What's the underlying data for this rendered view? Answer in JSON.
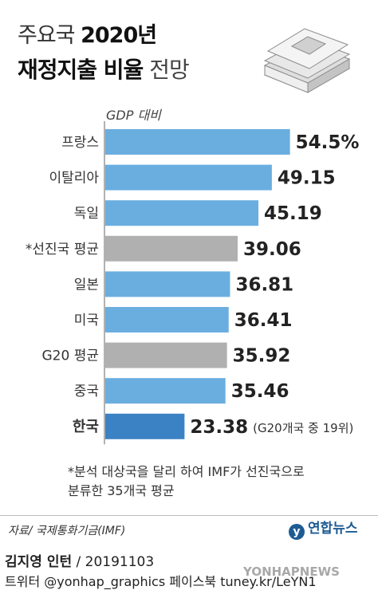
{
  "header": {
    "title_line1_a": "주요국 ",
    "title_line1_b": "2020년",
    "title_line2_a": "재정지출 비율",
    "title_line2_b": " 전망"
  },
  "chart_data": {
    "type": "bar",
    "orientation": "horizontal",
    "title": "주요국 2020년 재정지출 비율 전망",
    "axis_label": "GDP 대비",
    "categories": [
      "프랑스",
      "이탈리아",
      "독일",
      "*선진국 평균",
      "일본",
      "미국",
      "G20 평균",
      "중국",
      "한국"
    ],
    "values": [
      54.5,
      49.15,
      45.19,
      39.06,
      36.81,
      36.41,
      35.92,
      35.46,
      23.38
    ],
    "value_labels": [
      "54.5%",
      "49.15",
      "45.19",
      "39.06",
      "36.81",
      "36.41",
      "35.92",
      "35.46",
      "23.38"
    ],
    "annotations": {
      "한국": "(G20개국 중 19위)"
    },
    "colors": {
      "country": "#6aaee0",
      "average": "#b0b0b0",
      "highlight": "#3b82c4"
    },
    "bar_kinds": [
      "country",
      "country",
      "country",
      "average",
      "country",
      "country",
      "average",
      "country",
      "highlight"
    ]
  },
  "note": {
    "line1": "*분석 대상국을 달리 하여 IMF가 선진국으로",
    "line2": "분류한 35개국 평균"
  },
  "footer": {
    "source": "자료/ 국제통화기금(IMF)",
    "brand": "연합뉴스",
    "brand_icon": "yonhap-logo-icon",
    "author": "김지영 인턴",
    "date": " / 20191103",
    "contact": "트위터 @yonhap_graphics  페이스북 tuney.kr/LeYN1",
    "watermark": "YONHAPNEWS"
  }
}
